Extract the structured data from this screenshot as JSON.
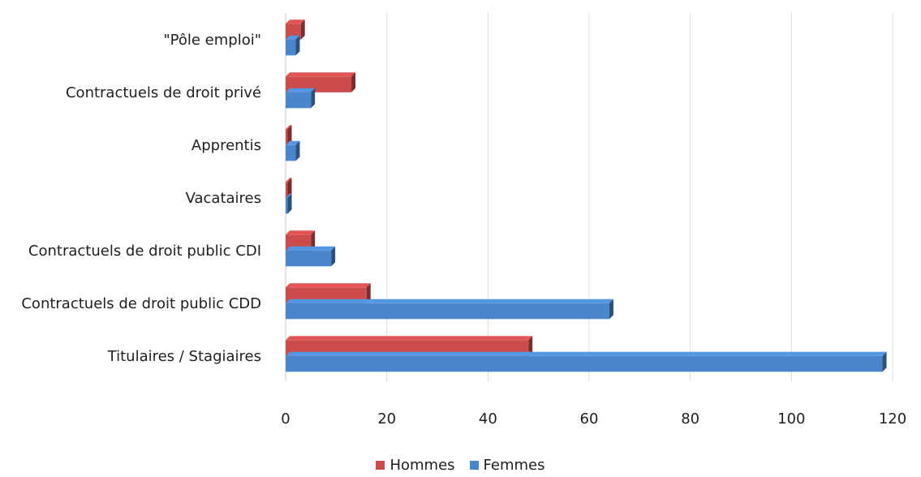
{
  "chart_data": {
    "type": "bar",
    "orientation": "horizontal",
    "categories": [
      "\"Pôle emploi\"",
      "Contractuels de droit privé",
      "Apprentis",
      "Vacataires",
      "Contractuels de droit public CDI",
      "Contractuels de droit public CDD",
      "Titulaires / Stagiaires"
    ],
    "series": [
      {
        "name": "Hommes",
        "color": "#cc4b4b",
        "values": [
          3,
          13,
          0.4,
          0.4,
          5,
          16,
          48
        ]
      },
      {
        "name": "Femmes",
        "color": "#4a86cc",
        "values": [
          2,
          5,
          2,
          0.4,
          9,
          64,
          118
        ]
      }
    ],
    "xticks": [
      "0",
      "20",
      "40",
      "60",
      "80",
      "100",
      "120"
    ],
    "xlim": [
      0,
      120
    ],
    "grid": true,
    "legend_position": "bottom",
    "title": "",
    "xlabel": "",
    "ylabel": ""
  }
}
